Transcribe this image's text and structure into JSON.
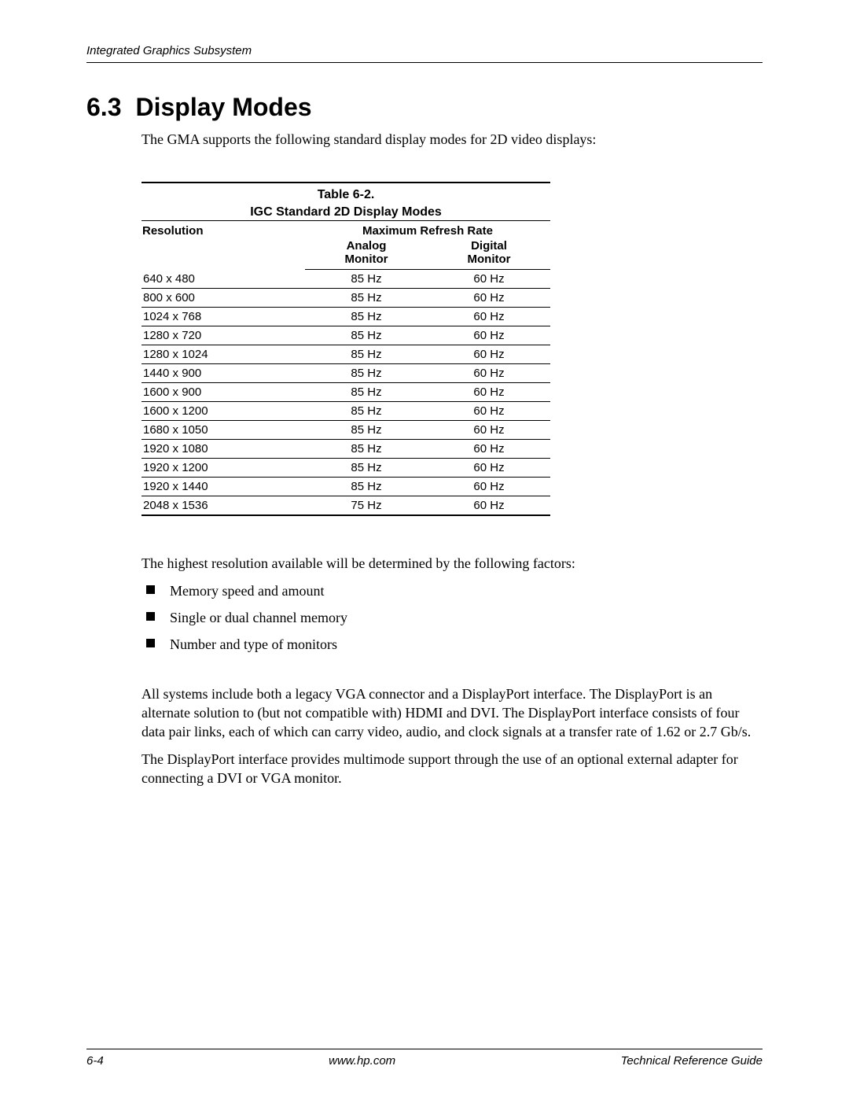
{
  "header": {
    "running_title": "Integrated Graphics Subsystem"
  },
  "section": {
    "number": "6.3",
    "title": "Display Modes",
    "intro": "The GMA supports the following standard display modes for 2D video displays:"
  },
  "table": {
    "caption_line1": "Table 6-2.",
    "caption_line2": "IGC Standard 2D Display Modes",
    "col_resolution": "Resolution",
    "col_refresh": "Maximum Refresh Rate",
    "sub_analog_l1": "Analog",
    "sub_analog_l2": "Monitor",
    "sub_digital_l1": "Digital",
    "sub_digital_l2": "Monitor",
    "rows": [
      {
        "res": "640 x 480",
        "analog": "85 Hz",
        "digital": "60 Hz"
      },
      {
        "res": "800 x 600",
        "analog": "85 Hz",
        "digital": "60 Hz"
      },
      {
        "res": "1024 x 768",
        "analog": "85 Hz",
        "digital": "60 Hz"
      },
      {
        "res": "1280 x 720",
        "analog": "85 Hz",
        "digital": "60 Hz"
      },
      {
        "res": "1280 x 1024",
        "analog": "85 Hz",
        "digital": "60 Hz"
      },
      {
        "res": "1440 x 900",
        "analog": "85 Hz",
        "digital": "60 Hz"
      },
      {
        "res": "1600 x 900",
        "analog": "85 Hz",
        "digital": "60 Hz"
      },
      {
        "res": "1600 x 1200",
        "analog": "85 Hz",
        "digital": "60 Hz"
      },
      {
        "res": "1680 x 1050",
        "analog": "85 Hz",
        "digital": "60 Hz"
      },
      {
        "res": "1920 x 1080",
        "analog": "85 Hz",
        "digital": "60 Hz"
      },
      {
        "res": "1920 x 1200",
        "analog": "85 Hz",
        "digital": "60 Hz"
      },
      {
        "res": "1920 x 1440",
        "analog": "85 Hz",
        "digital": "60 Hz"
      },
      {
        "res": "2048 x 1536",
        "analog": "75 Hz",
        "digital": "60 Hz"
      }
    ]
  },
  "factors": {
    "intro": "The highest resolution available will be determined by the following factors:",
    "items": [
      "Memory speed and amount",
      "Single or dual channel memory",
      "Number and type of monitors"
    ]
  },
  "paragraphs": {
    "p1": "All systems include both a legacy VGA connector and a DisplayPort interface. The DisplayPort is an alternate solution to (but not compatible with) HDMI and DVI. The DisplayPort interface consists of four data pair links, each of which can carry video, audio, and clock signals at a transfer rate of 1.62 or 2.7 Gb/s.",
    "p2": "The DisplayPort interface provides multimode support through the use of an optional external adapter for connecting a DVI or VGA monitor."
  },
  "footer": {
    "page": "6-4",
    "url": "www.hp.com",
    "doc": "Technical Reference Guide"
  }
}
